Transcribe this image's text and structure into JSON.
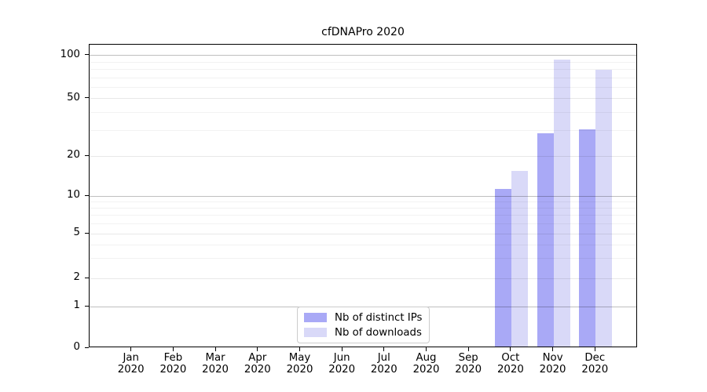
{
  "title_text": "cfDNAPro 2020",
  "colors": {
    "bar_ips": "#a9a9f6",
    "bar_downloads": "#d9d9f8",
    "grid_major": "rgba(0,0,0,0.25)",
    "grid_mid": "rgba(0,0,0,0.09)",
    "grid_minor": "rgba(0,0,0,0.05)",
    "axis": "#000000",
    "legend_border": "#cccccc",
    "text": "#000000"
  },
  "legend": {
    "items": [
      {
        "key": "ips",
        "label": "Nb of distinct IPs",
        "color": "#a9a9f6"
      },
      {
        "key": "downloads",
        "label": "Nb of downloads",
        "color": "#d9d9f8"
      }
    ]
  },
  "chart_data": {
    "type": "bar",
    "title": "cfDNAPro 2020",
    "xlabel": "",
    "ylabel": "",
    "x_categories": [
      {
        "month": "Jan",
        "year": "2020"
      },
      {
        "month": "Feb",
        "year": "2020"
      },
      {
        "month": "Mar",
        "year": "2020"
      },
      {
        "month": "Apr",
        "year": "2020"
      },
      {
        "month": "May",
        "year": "2020"
      },
      {
        "month": "Jun",
        "year": "2020"
      },
      {
        "month": "Jul",
        "year": "2020"
      },
      {
        "month": "Aug",
        "year": "2020"
      },
      {
        "month": "Sep",
        "year": "2020"
      },
      {
        "month": "Oct",
        "year": "2020"
      },
      {
        "month": "Nov",
        "year": "2020"
      },
      {
        "month": "Dec",
        "year": "2020"
      }
    ],
    "series": [
      {
        "key": "ips",
        "name": "Nb of distinct IPs",
        "values": [
          0,
          0,
          0,
          0,
          0,
          0,
          0,
          0,
          0,
          11,
          28,
          30
        ]
      },
      {
        "key": "downloads",
        "name": "Nb of downloads",
        "values": [
          0,
          0,
          0,
          0,
          0,
          0,
          0,
          0,
          0,
          15,
          92,
          78
        ]
      }
    ],
    "y_axis": {
      "scale": "log-like (1-2-5 tick sequence), zero baseline",
      "ylim": [
        0,
        119
      ],
      "ticks": [
        {
          "value": 0,
          "frac": 0.0
        },
        {
          "value": 1,
          "frac": 0.137
        },
        {
          "value": 2,
          "frac": 0.23
        },
        {
          "value": 5,
          "frac": 0.377
        },
        {
          "value": 10,
          "frac": 0.501
        },
        {
          "value": 20,
          "frac": 0.633
        },
        {
          "value": 50,
          "frac": 0.822
        },
        {
          "value": 100,
          "frac": 0.964
        }
      ],
      "major_grid_values": [
        1,
        10,
        100
      ],
      "mid_grid_values": [
        2,
        5,
        20,
        50
      ],
      "minor_grid_values": [
        3,
        4,
        6,
        7,
        8,
        9,
        30,
        40,
        60,
        70,
        80,
        90
      ]
    },
    "grid": true,
    "legend_position": "lower center"
  }
}
